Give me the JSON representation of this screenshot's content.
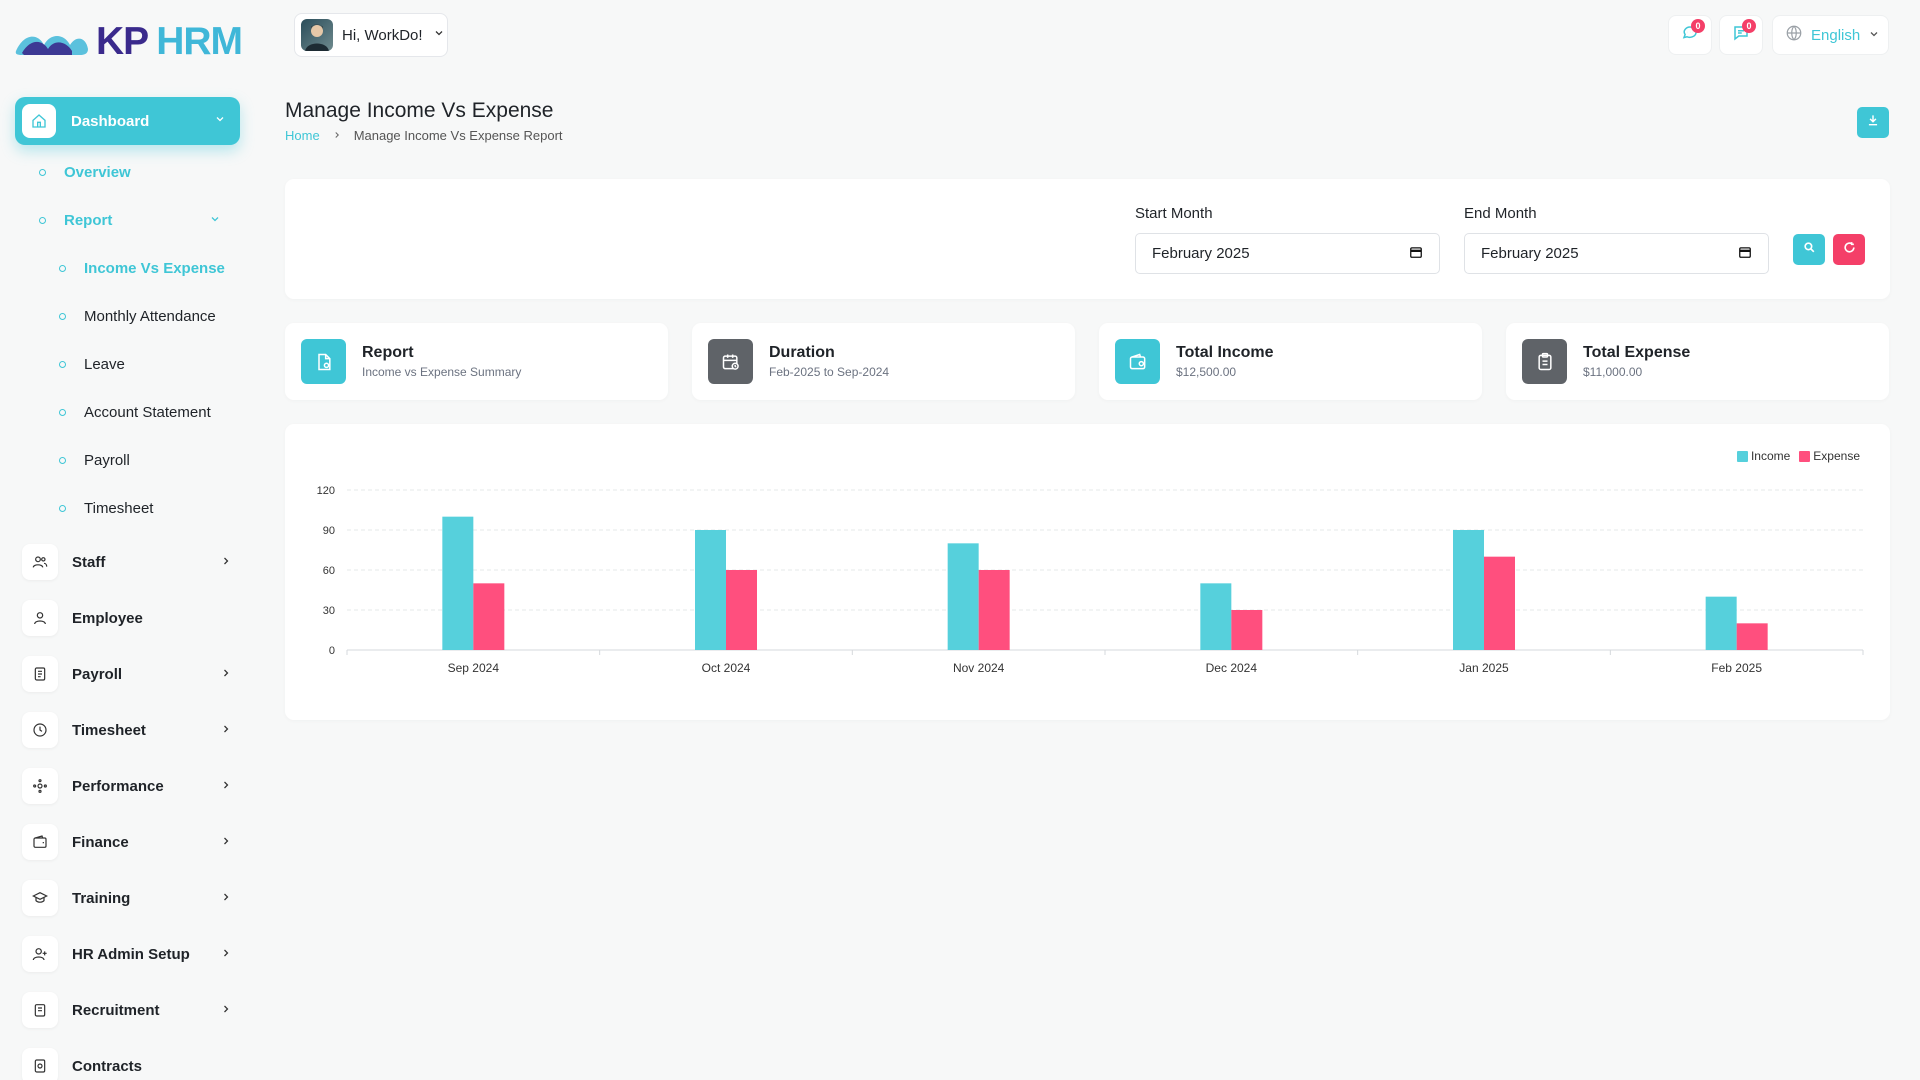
{
  "brand": {
    "part1": "KP",
    "part2": "HRM"
  },
  "sidebar": {
    "active": {
      "label": "Dashboard"
    },
    "sub1": [
      {
        "label": "Overview",
        "highlight": true
      },
      {
        "label": "Report",
        "highlight": true
      }
    ],
    "sub2": [
      {
        "label": "Income Vs Expense",
        "highlight": true
      },
      {
        "label": "Monthly Attendance"
      },
      {
        "label": "Leave"
      },
      {
        "label": "Account Statement"
      },
      {
        "label": "Payroll"
      },
      {
        "label": "Timesheet"
      }
    ],
    "items": [
      {
        "label": "Staff",
        "icon": "users-icon"
      },
      {
        "label": "Employee",
        "icon": "user-icon"
      },
      {
        "label": "Payroll",
        "icon": "receipt-icon"
      },
      {
        "label": "Timesheet",
        "icon": "clock-icon"
      },
      {
        "label": "Performance",
        "icon": "performance-icon"
      },
      {
        "label": "Finance",
        "icon": "wallet-icon"
      },
      {
        "label": "Training",
        "icon": "graduation-cap-icon"
      },
      {
        "label": "HR Admin Setup",
        "icon": "user-plus-icon"
      },
      {
        "label": "Recruitment",
        "icon": "clipboard-icon"
      },
      {
        "label": "Contracts",
        "icon": "contract-icon"
      }
    ]
  },
  "header": {
    "greeting": "Hi, WorkDo!",
    "messages_badge": "0",
    "notifications_badge": "0",
    "language": "English"
  },
  "page": {
    "title": "Manage Income Vs Expense",
    "breadcrumb_home": "Home",
    "breadcrumb_current": "Manage Income Vs Expense Report"
  },
  "filter": {
    "start_label": "Start Month",
    "start_value": "February 2025",
    "end_label": "End Month",
    "end_value": "February 2025"
  },
  "stats": [
    {
      "title": "Report",
      "subtitle": "Income vs Expense Summary",
      "color": "#3fc6d6",
      "icon": "file-report-icon"
    },
    {
      "title": "Duration",
      "subtitle": "Feb-2025 to Sep-2024",
      "color": "#5f6368",
      "icon": "calendar-icon"
    },
    {
      "title": "Total Income",
      "subtitle": "$12,500.00",
      "color": "#3fc6d6",
      "icon": "wallet-icon"
    },
    {
      "title": "Total Expense",
      "subtitle": "$11,000.00",
      "color": "#5f6368",
      "icon": "clipboard-icon"
    }
  ],
  "colors": {
    "accent": "#3fc6d6",
    "danger": "#f43f68",
    "income": "#56d0dc",
    "expense": "#ff4f7e"
  },
  "chart_data": {
    "type": "bar",
    "categories": [
      "Sep 2024",
      "Oct 2024",
      "Nov 2024",
      "Dec 2024",
      "Jan 2025",
      "Feb 2025"
    ],
    "series": [
      {
        "name": "Income",
        "values": [
          100,
          90,
          80,
          50,
          90,
          40
        ]
      },
      {
        "name": "Expense",
        "values": [
          50,
          60,
          60,
          30,
          70,
          20
        ]
      }
    ],
    "yticks": [
      0,
      30,
      60,
      90,
      120
    ],
    "ylim": [
      0,
      120
    ],
    "legend": "top-right",
    "grid": true
  }
}
